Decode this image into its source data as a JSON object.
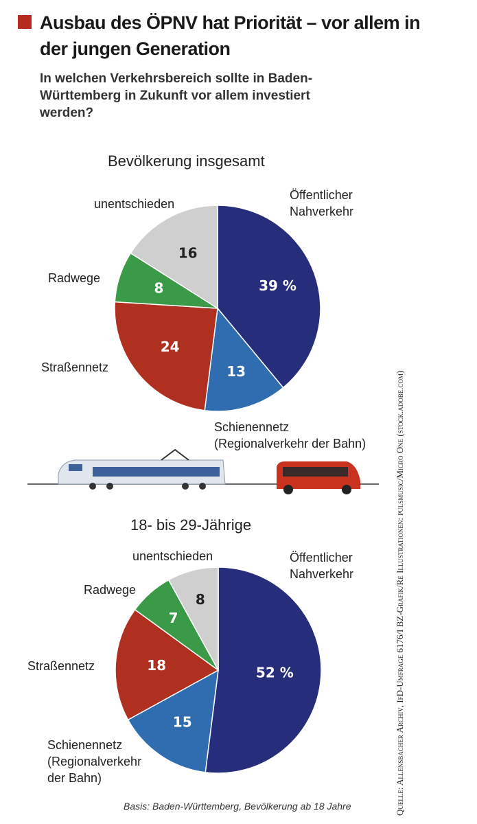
{
  "header": {
    "title": "Ausbau des ÖPNV hat Priorität – vor allem in der jungen Generation",
    "subtitle": "In welchen Verkehrsbereich sollte in Baden-Württemberg in Zukunft vor allem investiert werden?"
  },
  "chart_data": [
    {
      "type": "pie",
      "title": "Bevölkerung insgesamt",
      "categories": [
        "Öffentlicher Nahverkehr",
        "Schienennetz (Regionalverkehr der Bahn)",
        "Straßennetz",
        "Radwege",
        "unentschieden"
      ],
      "values": [
        39,
        13,
        24,
        8,
        16
      ],
      "value_labels": [
        "39 %",
        "13",
        "24",
        "8",
        "16"
      ],
      "colors": [
        "#262d7a",
        "#2f6db0",
        "#b0301f",
        "#3b9a47",
        "#cfcfcf"
      ]
    },
    {
      "type": "pie",
      "title": "18- bis 29-Jährige",
      "categories": [
        "Öffentlicher Nahverkehr",
        "Schienennetz (Regionalverkehr der Bahn)",
        "Straßennetz",
        "Radwege",
        "unentschieden"
      ],
      "values": [
        52,
        15,
        18,
        7,
        8
      ],
      "value_labels": [
        "52 %",
        "15",
        "18",
        "7",
        "8"
      ],
      "colors": [
        "#262d7a",
        "#2f6db0",
        "#b0301f",
        "#3b9a47",
        "#cfcfcf"
      ]
    }
  ],
  "footer": {
    "note": "Basis: Baden-Württemberg, Bevölkerung ab 18 Jahre",
    "source": "Quelle: Allensbacher Archiv, IfD-Umfrage 6176/I   BZ-Grafik/Re   Illustrationen: pulsmusic/Micro One (stock.adobe.com)"
  }
}
